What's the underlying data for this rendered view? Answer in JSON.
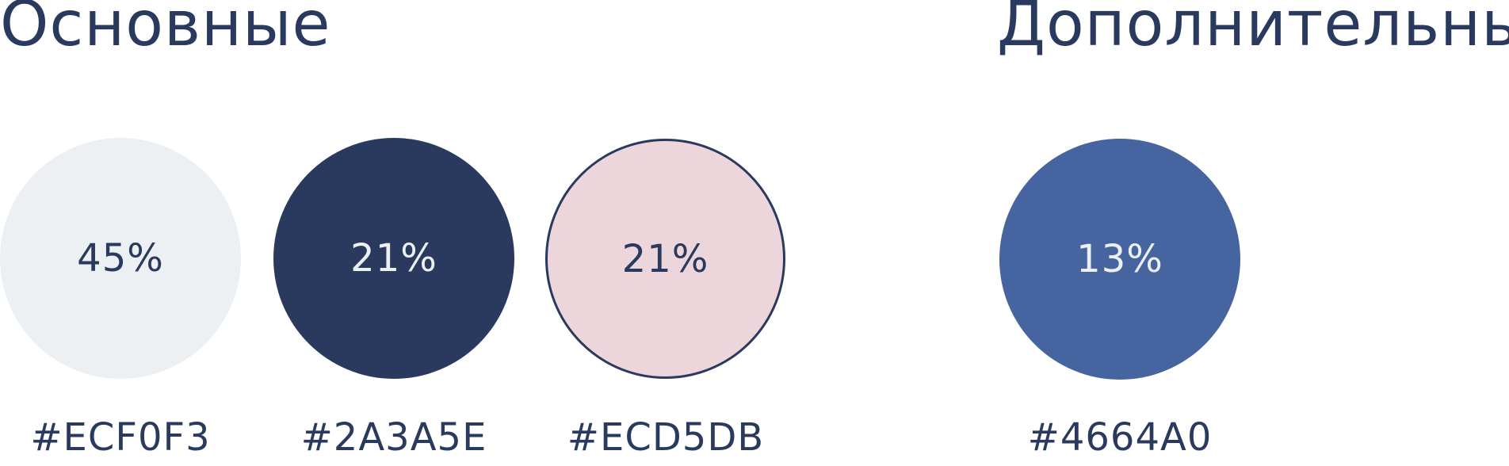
{
  "headings": {
    "main": "Основные",
    "extra": "Дополнительный"
  },
  "swatches": [
    {
      "percent": "45%",
      "hex": "#ECF0F3",
      "color": "#ECF0F3",
      "text_color": "#2A3A5E"
    },
    {
      "percent": "21%",
      "hex": "#2A3A5E",
      "color": "#2A3A5E",
      "text_color": "#ECF0F3"
    },
    {
      "percent": "21%",
      "hex": "#ECD5DB",
      "color": "#ECD5DB",
      "text_color": "#2A3A5E"
    },
    {
      "percent": "13%",
      "hex": "#4664A0",
      "color": "#4664A0",
      "text_color": "#ECF0F3"
    }
  ]
}
